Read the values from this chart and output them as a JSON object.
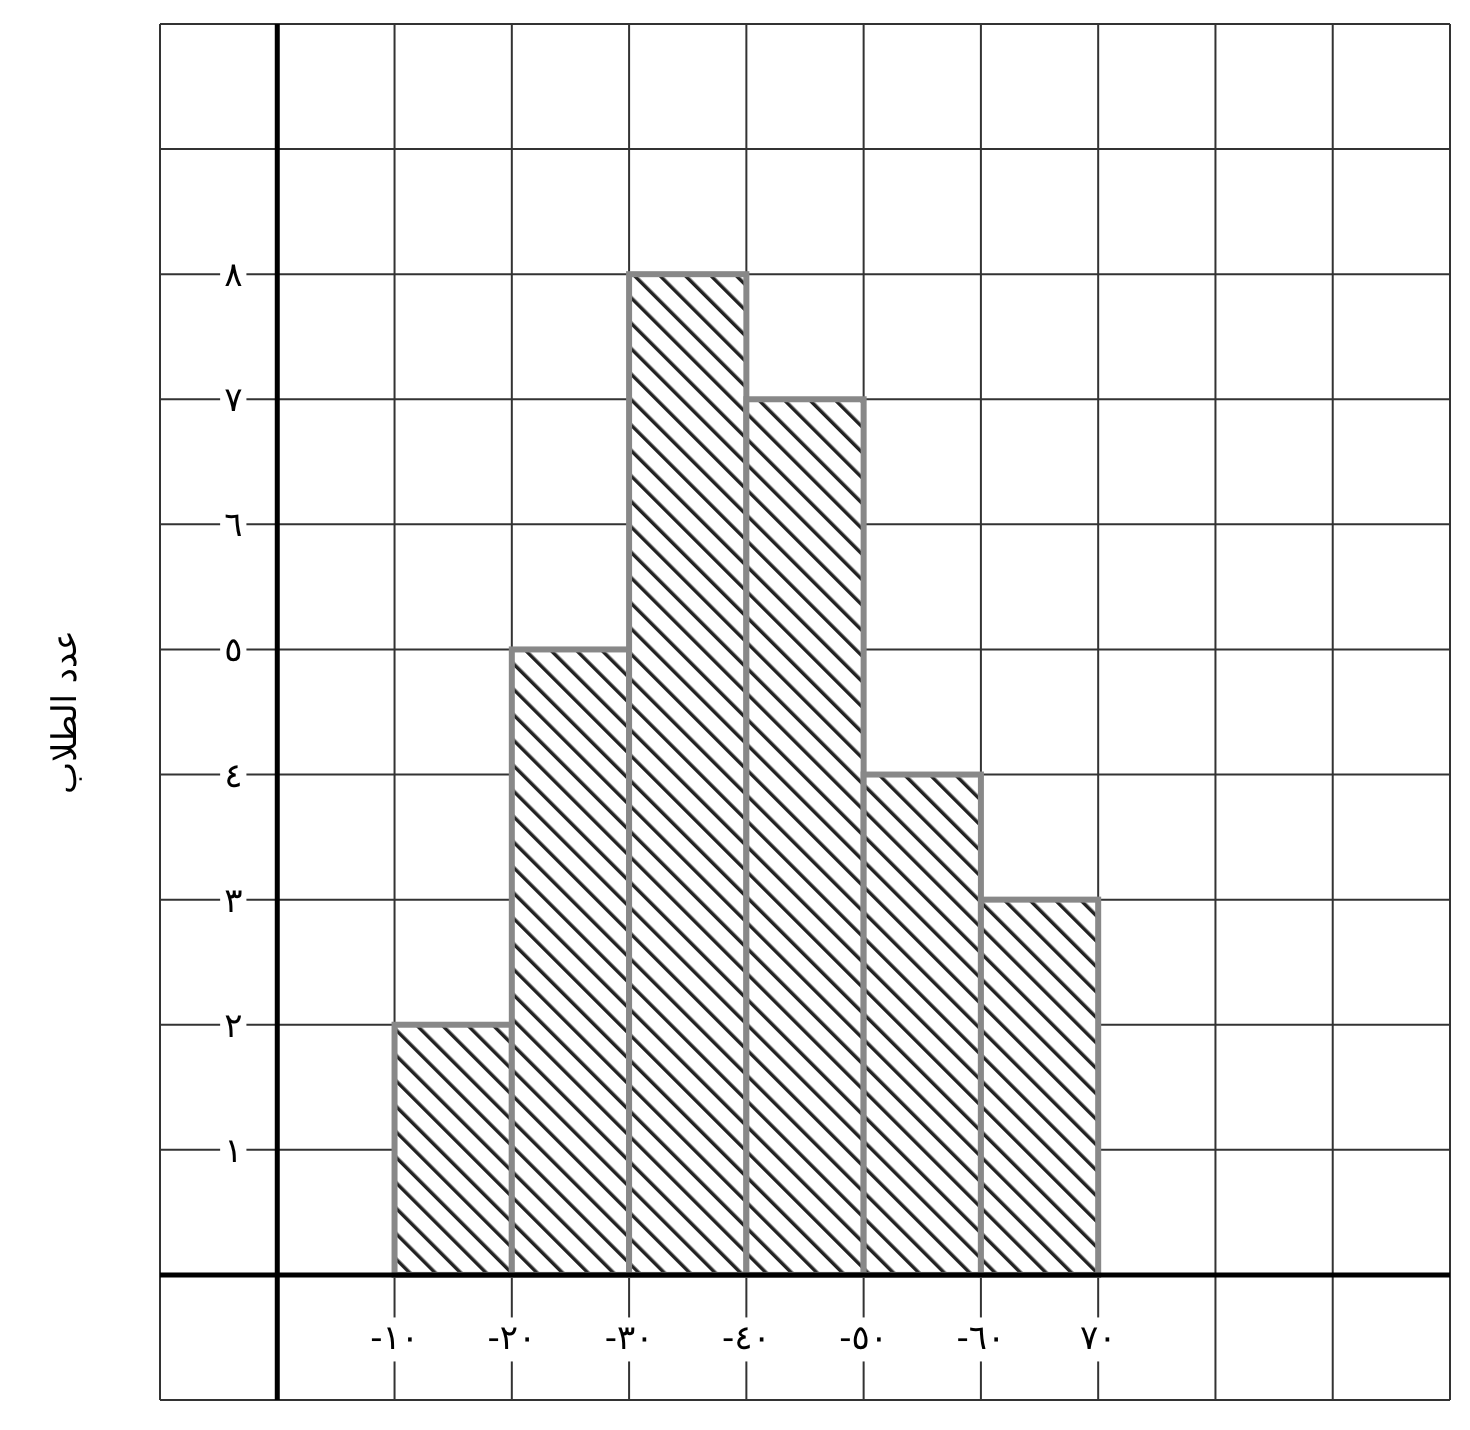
{
  "chart_data": {
    "type": "histogram",
    "ylabel": "عدد الطلاب",
    "bins": [
      10,
      20,
      30,
      40,
      50,
      60,
      70
    ],
    "values": [
      2,
      5,
      8,
      7,
      4,
      3
    ],
    "color": "#888888",
    "xlim": [
      -10,
      100
    ],
    "ylim": [
      -1,
      10
    ],
    "xticks": [
      {
        "value": 10,
        "label": "١٠-"
      },
      {
        "value": 20,
        "label": "٢٠-"
      },
      {
        "value": 30,
        "label": "٣٠-"
      },
      {
        "value": 40,
        "label": "٤٠-"
      },
      {
        "value": 50,
        "label": "٥٠-"
      },
      {
        "value": 60,
        "label": "٦٠-"
      },
      {
        "value": 70,
        "label": "٧٠"
      }
    ],
    "yticks": [
      {
        "value": 1,
        "label": "١"
      },
      {
        "value": 2,
        "label": "٢"
      },
      {
        "value": 3,
        "label": "٣"
      },
      {
        "value": 4,
        "label": "٤"
      },
      {
        "value": 5,
        "label": "٥"
      },
      {
        "value": 6,
        "label": "٦"
      },
      {
        "value": 7,
        "label": "٧"
      },
      {
        "value": 8,
        "label": "٨"
      }
    ],
    "grid": true
  }
}
